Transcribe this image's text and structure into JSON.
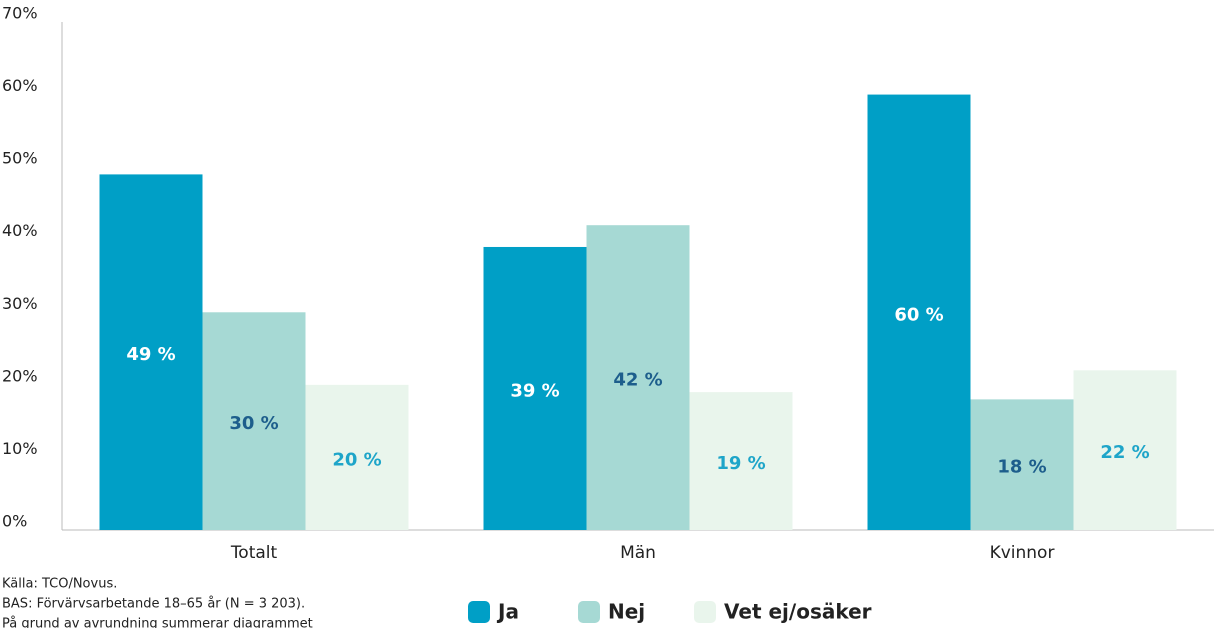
{
  "chart_data": {
    "type": "bar",
    "categories": [
      "Totalt",
      "Män",
      "Kvinnor"
    ],
    "series": [
      {
        "name": "Ja",
        "color": "#009fc6",
        "label_color": "#ffffff",
        "values": [
          49,
          39,
          60
        ],
        "value_labels": [
          "49 %",
          "39 %",
          "60 %"
        ]
      },
      {
        "name": "Nej",
        "color": "#a6d9d4",
        "label_color": "#1d5e8c",
        "values": [
          30,
          42,
          18
        ],
        "value_labels": [
          "30 %",
          "42 %",
          "18 %"
        ]
      },
      {
        "name": "Vet ej/osäker",
        "color": "#e9f5ec",
        "label_color": "#1ea5c9",
        "values": [
          20,
          19,
          22
        ],
        "value_labels": [
          "20 %",
          "19 %",
          "22 %"
        ]
      }
    ],
    "ylim": [
      0,
      70
    ],
    "yticks": [
      {
        "value": 0,
        "label": "0%"
      },
      {
        "value": 10,
        "label": "10%"
      },
      {
        "value": 20,
        "label": "20%"
      },
      {
        "value": 30,
        "label": "30%"
      },
      {
        "value": 40,
        "label": "40%"
      },
      {
        "value": 50,
        "label": "50%"
      },
      {
        "value": 60,
        "label": "60%"
      },
      {
        "value": 70,
        "label": "70%"
      }
    ],
    "notes": [
      "Källa: TCO/Novus.",
      "BAS: Förvärvsarbetande 18–65 år (N = 3 203).",
      "På grund av avrundning summerar diagrammet"
    ]
  }
}
